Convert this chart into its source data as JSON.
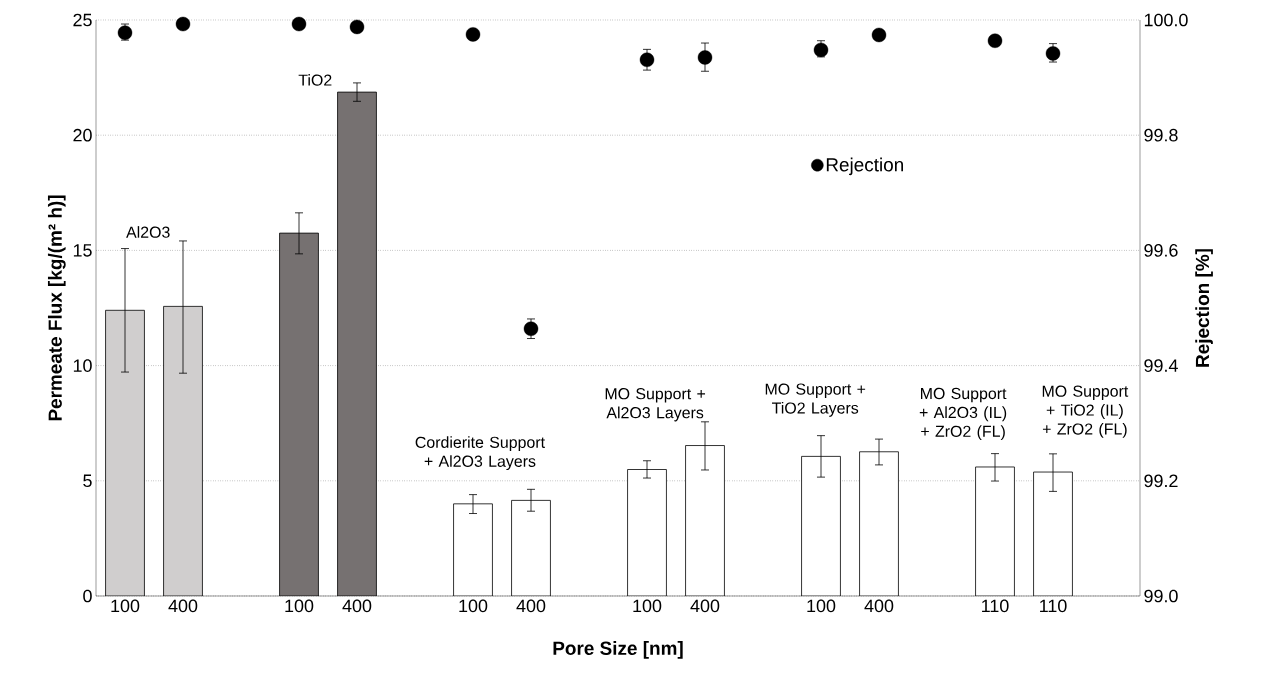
{
  "chart_data": {
    "type": "bar",
    "xlabel": "Pore Size [nm]",
    "ylabel": "Permeate Flux [kg/(m² h)]",
    "y2label": "Rejection [%]",
    "categories": [
      "100",
      "400",
      null,
      "100",
      "400",
      null,
      "100",
      "400",
      null,
      "100",
      "400",
      null,
      "100",
      "400",
      null,
      "110",
      "110"
    ],
    "series": [
      {
        "colors": [
          "#d0cece",
          "#d0cece",
          null,
          "#767171",
          "#767171",
          null,
          "#ffffff",
          "#ffffff",
          null,
          "#ffffff",
          "#ffffff",
          null,
          "#ffffff",
          "#ffffff",
          null,
          "#ffffff",
          "#ffffff"
        ],
        "values": [
          12.4,
          12.57,
          null,
          15.75,
          21.87,
          null,
          4.0,
          4.15,
          null,
          5.49,
          6.53,
          null,
          6.06,
          6.26,
          null,
          5.6,
          5.38
        ],
        "errors": [
          [
            9.72,
            15.08
          ],
          [
            9.67,
            15.41
          ],
          null,
          [
            14.85,
            16.63
          ],
          [
            21.47,
            22.27
          ],
          null,
          [
            3.58,
            4.4
          ],
          [
            3.68,
            4.63
          ],
          null,
          [
            5.12,
            5.87
          ],
          [
            5.47,
            7.56
          ],
          null,
          [
            5.16,
            6.96
          ],
          [
            5.69,
            6.81
          ],
          null,
          [
            4.99,
            6.18
          ],
          [
            4.54,
            6.17
          ]
        ]
      },
      {
        "type": "scatter",
        "name": "Rejection",
        "axis": "y2",
        "color": "#000000",
        "values": [
          99.978,
          99.993,
          null,
          99.993,
          99.988,
          null,
          99.975,
          99.464,
          null,
          99.931,
          99.935,
          null,
          99.948,
          99.974,
          null,
          99.964,
          99.942
        ],
        "errors": [
          [
            99.965,
            99.993
          ],
          null,
          null,
          null,
          null,
          null,
          null,
          [
            99.447,
            99.481
          ],
          null,
          [
            99.913,
            99.949
          ],
          [
            99.911,
            99.96
          ],
          null,
          [
            99.936,
            99.964
          ],
          null,
          null,
          null,
          [
            99.927,
            99.959
          ]
        ]
      }
    ],
    "ylim": [
      0,
      25
    ],
    "yticks": [
      0,
      5,
      10,
      15,
      20,
      25
    ],
    "y2lim": [
      99.0,
      100.0
    ],
    "y2ticks": [
      {
        "value": 99.0,
        "label": "99.0"
      },
      99.2,
      99.4,
      99.6,
      99.8,
      {
        "value": 100.0,
        "label": "100.0"
      }
    ],
    "grid": "y",
    "legend": "top right",
    "annotations": [
      "Al2O3",
      "TiO2",
      "Cordierite Support + Al2O3 Layers",
      "MO Support + Al2O3 Layers",
      "MO Support + TiO2 Layers",
      "MO Support + Al2O3 (IL) + ZrO2 (FL)",
      "MO Support + TiO2 (IL) + ZrO2 (FL)"
    ]
  }
}
